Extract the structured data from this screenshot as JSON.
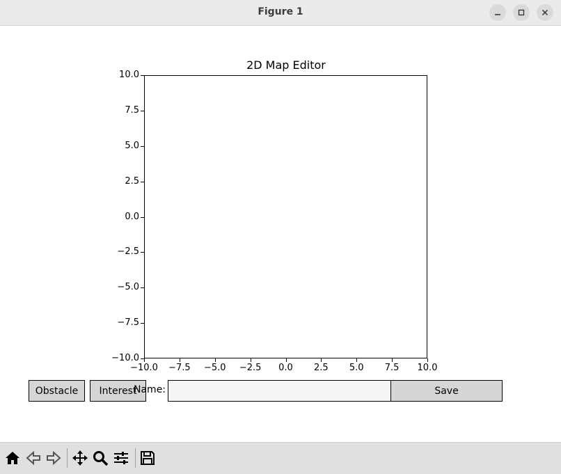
{
  "window": {
    "title": "Figure 1"
  },
  "plot": {
    "title": "2D Map Editor"
  },
  "chart_data": {
    "type": "scatter",
    "title": "2D Map Editor",
    "xlabel": "",
    "ylabel": "",
    "xlim": [
      -10.0,
      10.0
    ],
    "ylim": [
      -10.0,
      10.0
    ],
    "x_ticks": [
      "−10.0",
      "−7.5",
      "−5.0",
      "−2.5",
      "0.0",
      "2.5",
      "5.0",
      "7.5",
      "10.0"
    ],
    "y_ticks": [
      "10.0",
      "7.5",
      "5.0",
      "2.5",
      "0.0",
      "−2.5",
      "−5.0",
      "−7.5",
      "−10.0"
    ],
    "series": [],
    "grid": false
  },
  "controls": {
    "obstacle_label": "Obstacle",
    "interest_label": "Interest",
    "name_label": "Name:",
    "name_value": "",
    "save_label": "Save"
  },
  "toolbar": {
    "icons": [
      "home-icon",
      "back-icon",
      "forward-icon",
      "pan-icon",
      "zoom-icon",
      "configure-subplots-icon",
      "save-icon"
    ]
  }
}
